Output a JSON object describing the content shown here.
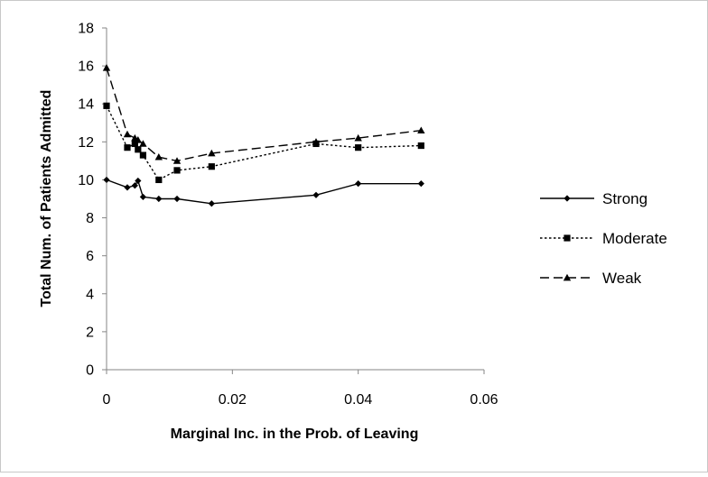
{
  "chart_data": {
    "type": "line",
    "title": "",
    "xlabel": "Marginal Inc. in the Prob. of Leaving",
    "ylabel": "Total Num. of Patients Admitted",
    "xlim": [
      0,
      0.06
    ],
    "ylim": [
      0,
      18
    ],
    "x_ticks": [
      0,
      0.02,
      0.04,
      0.06
    ],
    "x_tick_labels": [
      "0",
      "0.02",
      "0.04",
      "0.06"
    ],
    "y_ticks": [
      0,
      2,
      4,
      6,
      8,
      10,
      12,
      14,
      16,
      18
    ],
    "y_tick_labels": [
      "0",
      "2",
      "4",
      "6",
      "8",
      "10",
      "12",
      "14",
      "16",
      "18"
    ],
    "grid": false,
    "legend_position": "right",
    "series": [
      {
        "name": "Strong",
        "marker": "diamond",
        "dash": "solid",
        "color": "#000000",
        "points": [
          [
            0,
            10
          ],
          [
            0.0033,
            9.6
          ],
          [
            0.0045,
            9.7
          ],
          [
            0.005,
            9.95
          ],
          [
            0.0058,
            9.1
          ],
          [
            0.0083,
            9.0
          ],
          [
            0.0112,
            9.0
          ],
          [
            0.0167,
            8.75
          ],
          [
            0.0333,
            9.2
          ],
          [
            0.04,
            9.8
          ],
          [
            0.05,
            9.8
          ]
        ]
      },
      {
        "name": "Moderate",
        "marker": "square",
        "dash": "dotted",
        "color": "#000000",
        "points": [
          [
            0,
            13.9
          ],
          [
            0.0033,
            11.7
          ],
          [
            0.0045,
            11.9
          ],
          [
            0.005,
            11.6
          ],
          [
            0.0058,
            11.3
          ],
          [
            0.0083,
            10.0
          ],
          [
            0.0112,
            10.5
          ],
          [
            0.0167,
            10.7
          ],
          [
            0.0333,
            11.9
          ],
          [
            0.04,
            11.7
          ],
          [
            0.05,
            11.8
          ]
        ]
      },
      {
        "name": "Weak",
        "marker": "triangle",
        "dash": "dashed",
        "color": "#000000",
        "points": [
          [
            0,
            15.9
          ],
          [
            0.0033,
            12.4
          ],
          [
            0.0045,
            12.2
          ],
          [
            0.005,
            12.1
          ],
          [
            0.0058,
            11.9
          ],
          [
            0.0083,
            11.2
          ],
          [
            0.0112,
            11.0
          ],
          [
            0.0167,
            11.4
          ],
          [
            0.0333,
            12.0
          ],
          [
            0.04,
            12.2
          ],
          [
            0.05,
            12.6
          ]
        ]
      }
    ]
  }
}
